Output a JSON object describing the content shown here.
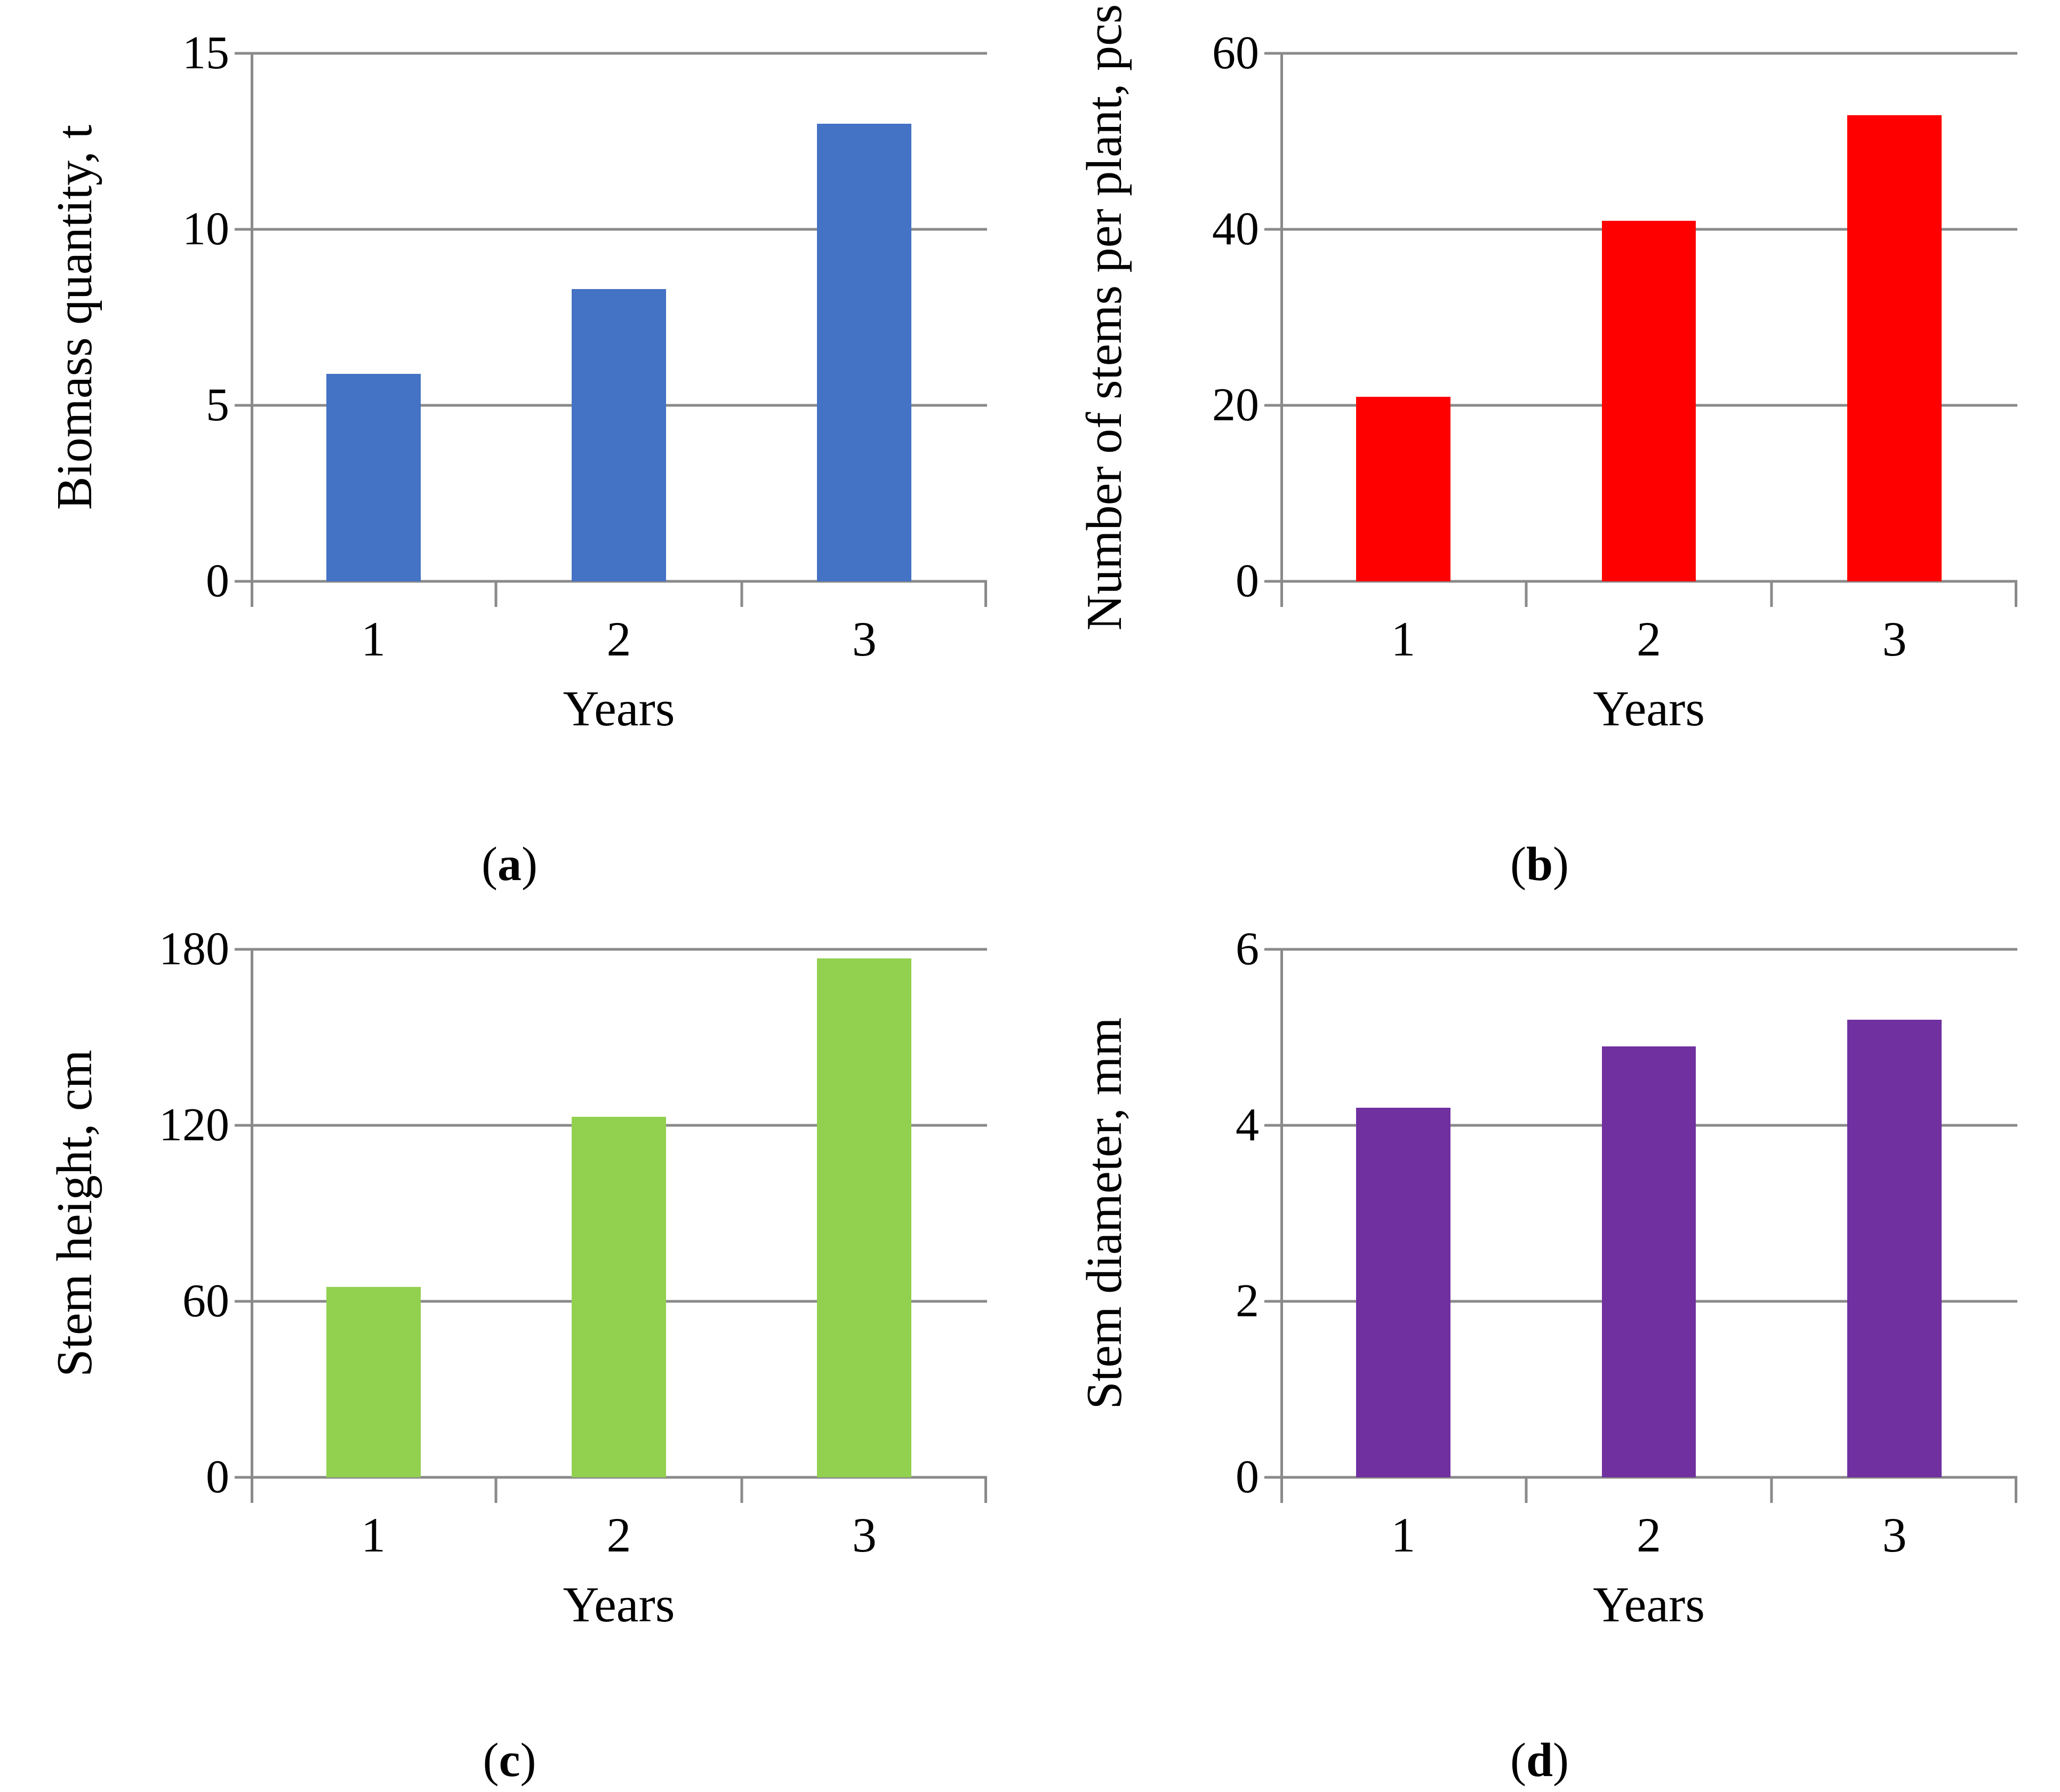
{
  "figure": {
    "caption_paren_open": "(",
    "caption_paren_close": ")"
  },
  "chart_data": [
    {
      "type": "bar",
      "panel": "a",
      "title": "",
      "ylabel": "Biomass quantity, t",
      "xlabel": "Years",
      "categories": [
        "1",
        "2",
        "3"
      ],
      "values": [
        5.9,
        8.3,
        13.0
      ],
      "ylim": [
        0,
        15
      ],
      "yticks": [
        0,
        5,
        10,
        15
      ],
      "grid": true,
      "legend": "none",
      "bar_color": "#4472C4",
      "caption_letter": "a"
    },
    {
      "type": "bar",
      "panel": "b",
      "title": "",
      "ylabel": "Number of stems per plant, pcs",
      "xlabel": "Years",
      "categories": [
        "1",
        "2",
        "3"
      ],
      "values": [
        21,
        41,
        53
      ],
      "ylim": [
        0,
        60
      ],
      "yticks": [
        0,
        20,
        40,
        60
      ],
      "grid": true,
      "legend": "none",
      "bar_color": "#FF0000",
      "caption_letter": "b"
    },
    {
      "type": "bar",
      "panel": "c",
      "title": "",
      "ylabel": "Stem height, cm",
      "xlabel": "Years",
      "categories": [
        "1",
        "2",
        "3"
      ],
      "values": [
        65,
        123,
        177
      ],
      "ylim": [
        0,
        180
      ],
      "yticks": [
        0,
        60,
        120,
        180
      ],
      "grid": true,
      "legend": "none",
      "bar_color": "#92D050",
      "caption_letter": "c"
    },
    {
      "type": "bar",
      "panel": "d",
      "title": "",
      "ylabel": "Stem diameter, mm",
      "xlabel": "Years",
      "categories": [
        "1",
        "2",
        "3"
      ],
      "values": [
        4.2,
        4.9,
        5.2
      ],
      "ylim": [
        0,
        6
      ],
      "yticks": [
        0,
        2,
        4,
        6
      ],
      "grid": true,
      "legend": "none",
      "bar_color": "#7030A0",
      "caption_letter": "d"
    }
  ],
  "axis_style": {
    "line_color": "#8a8a8a"
  }
}
